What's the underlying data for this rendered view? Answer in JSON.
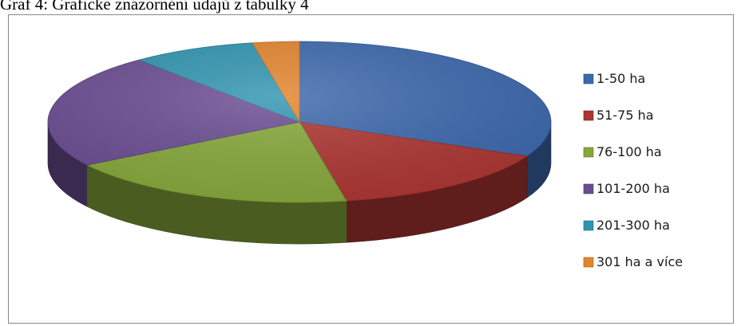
{
  "caption": "Graf 4: Grafické znázornění údajů z tabulky 4",
  "chart_data": {
    "type": "pie",
    "style": "3d",
    "legend_position": "right",
    "categories": [
      "1-50 ha",
      "51-75 ha",
      "76-100 ha",
      "101-200 ha",
      "201-300 ha",
      "301 ha a více"
    ],
    "values": [
      32,
      15,
      19,
      23,
      8,
      3
    ],
    "colors": [
      "#3c68ad",
      "#ad3532",
      "#86a83a",
      "#6a4c91",
      "#2f94b0",
      "#e3842c"
    ]
  }
}
